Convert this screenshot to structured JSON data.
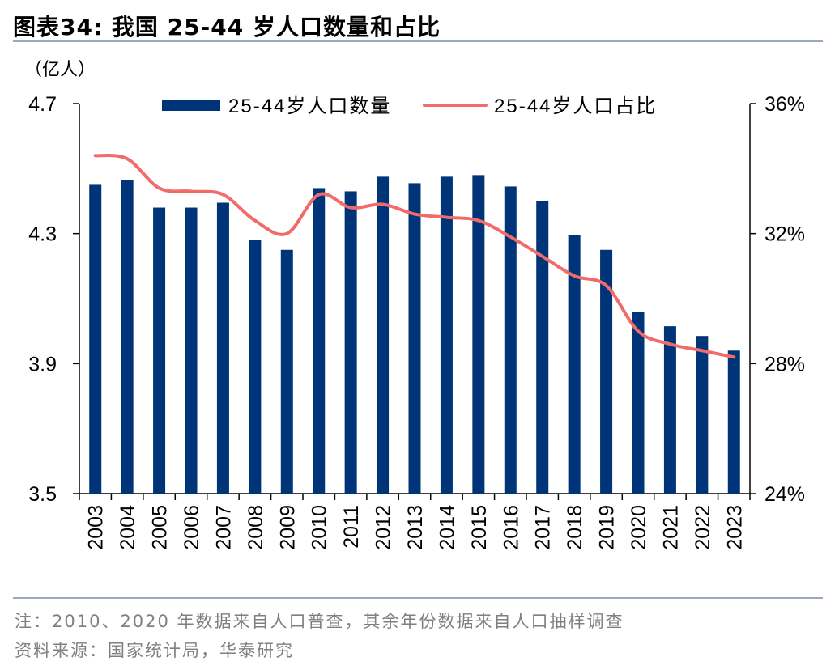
{
  "header": {
    "title": "图表34:  我国 25-44 岁人口数量和占比",
    "unit": "（亿人）"
  },
  "footer": {
    "note": "注：2010、2020 年数据来自人口普查，其余年份数据来自人口抽样调查",
    "source": "资料来源：国家统计局，华泰研究"
  },
  "colors": {
    "bar": "#003478",
    "line": "#f26b6b",
    "rule": "#9aa9c1",
    "note_text": "#7f7f7f"
  },
  "chart_data": {
    "type": "bar",
    "title": "",
    "categories": [
      "2003",
      "2004",
      "2005",
      "2006",
      "2007",
      "2008",
      "2009",
      "2010",
      "2011",
      "2012",
      "2013",
      "2014",
      "2015",
      "2016",
      "2017",
      "2018",
      "2019",
      "2020",
      "2021",
      "2022",
      "2023"
    ],
    "series": [
      {
        "name": "25-44岁人口数量",
        "type": "bar",
        "axis": "left",
        "values": [
          4.45,
          4.465,
          4.38,
          4.38,
          4.395,
          4.28,
          4.25,
          4.44,
          4.43,
          4.475,
          4.455,
          4.475,
          4.48,
          4.445,
          4.4,
          4.295,
          4.25,
          4.06,
          4.015,
          3.985,
          3.94
        ]
      },
      {
        "name": "25-44岁人口占比",
        "type": "line",
        "axis": "right",
        "values": [
          34.4,
          34.3,
          33.4,
          33.3,
          33.2,
          32.4,
          32.0,
          33.2,
          32.8,
          32.9,
          32.6,
          32.5,
          32.4,
          31.9,
          31.3,
          30.7,
          30.4,
          29.0,
          28.6,
          28.4,
          28.2
        ]
      }
    ],
    "y_left": {
      "ylim": [
        3.5,
        4.7
      ],
      "ticks": [
        3.5,
        3.9,
        4.3,
        4.7
      ],
      "tick_labels": [
        "3.5",
        "3.9",
        "4.3",
        "4.7"
      ]
    },
    "y_right": {
      "ylim": [
        24,
        36
      ],
      "ticks": [
        24,
        28,
        32,
        36
      ],
      "tick_labels": [
        "24%",
        "28%",
        "32%",
        "36%"
      ]
    },
    "legend": {
      "placement": "top-center"
    },
    "grid": false
  }
}
